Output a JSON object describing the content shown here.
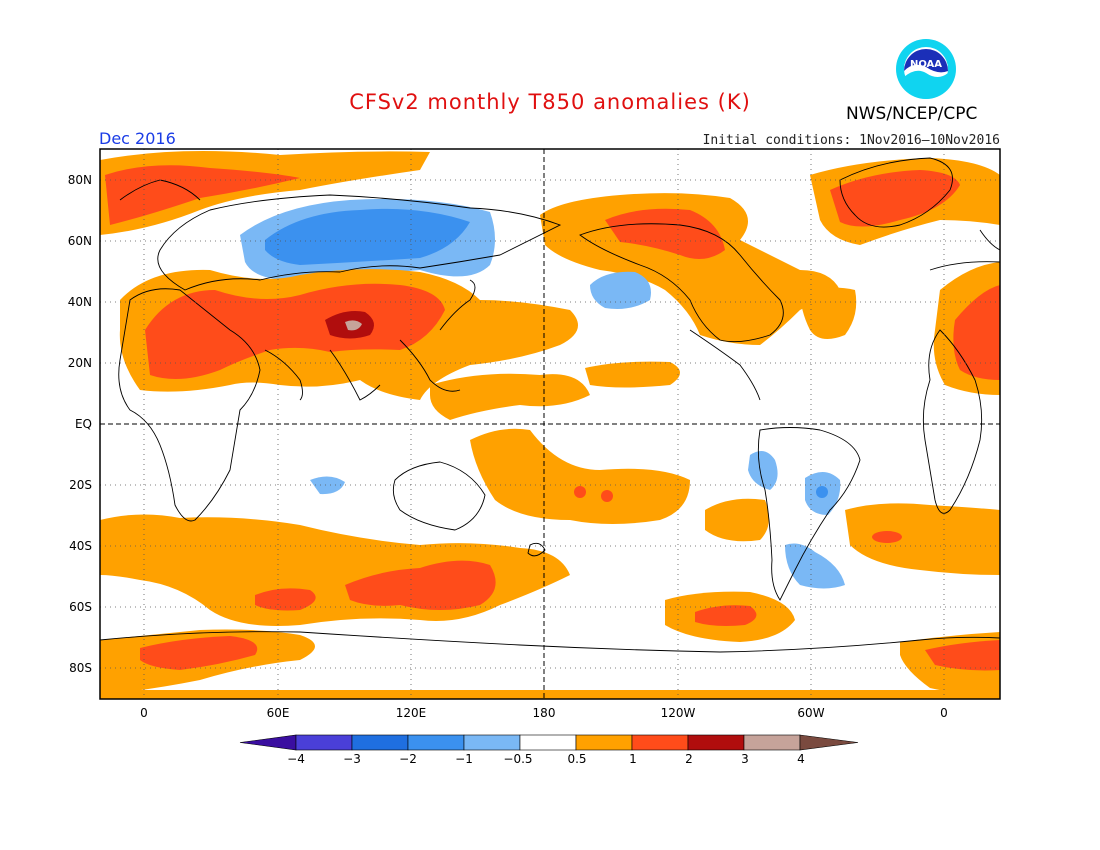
{
  "header": {
    "title": "CFSv2 monthly T850 anomalies (K)",
    "valid_month": "Dec 2016",
    "initial_conditions": "Initial conditions: 1Nov2016–10Nov2016",
    "agency": "NWS/NCEP/CPC",
    "logo_icon": "noaa-logo-icon",
    "logo_text": "NOAA"
  },
  "map": {
    "projection": "cylindrical-equidistant",
    "lon_range": [
      -20,
      380
    ],
    "lat_range": [
      -90,
      90
    ],
    "lat_ticks": [
      "80N",
      "60N",
      "40N",
      "20N",
      "EQ",
      "20S",
      "40S",
      "60S",
      "80S"
    ],
    "lon_ticks": [
      "0",
      "60E",
      "120E",
      "180",
      "120W",
      "60W",
      "0"
    ],
    "grid": "dotted",
    "reference_lines": [
      "equator",
      "dateline"
    ]
  },
  "colorbar": {
    "tick_labels": [
      "−4",
      "−3",
      "−2",
      "−1",
      "−0.5",
      "0.5",
      "1",
      "2",
      "3",
      "4"
    ],
    "colors": [
      "#3a0ea0",
      "#4a3fd8",
      "#1f6fe0",
      "#3b91ef",
      "#7ab8f5",
      "#ffffff",
      "#ffa100",
      "#ff4c1a",
      "#b00d0d",
      "#c6a39a",
      "#7a4a3f"
    ]
  }
}
